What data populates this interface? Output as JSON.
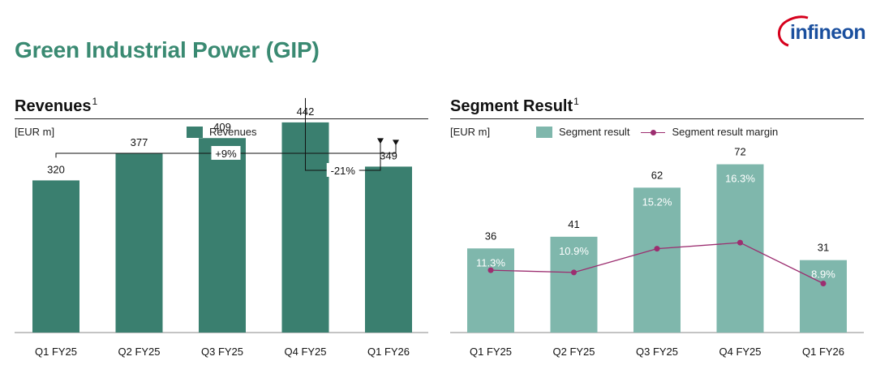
{
  "page": {
    "title": "Green Industrial Power (GIP)",
    "logo_text": "infineon",
    "colors": {
      "title": "#3a8a72",
      "revenue_bar": "#3a7f6f",
      "segment_bar": "#7fb7ac",
      "margin_line": "#9c2e70",
      "logo": "#1a4f9e",
      "logo_swoosh": "#d6001c"
    }
  },
  "chart_data": [
    {
      "type": "bar",
      "title": "Revenues",
      "title_footnote": "1",
      "unit_label": "[EUR m]",
      "categories": [
        "Q1 FY25",
        "Q2 FY25",
        "Q3 FY25",
        "Q4 FY25",
        "Q1 FY26"
      ],
      "series": [
        {
          "name": "Revenues",
          "values": [
            320,
            377,
            409,
            442,
            349
          ]
        }
      ],
      "ylim": [
        0,
        580
      ],
      "legend_position": "top-center",
      "annotations": [
        {
          "label": "+9%",
          "from": "Q1 FY25",
          "to": "Q1 FY26"
        },
        {
          "label": "-21%",
          "from": "Q4 FY25",
          "to": "Q1 FY26"
        }
      ]
    },
    {
      "type": "bar",
      "title": "Segment Result",
      "title_footnote": "1",
      "unit_label": "[EUR m]",
      "categories": [
        "Q1 FY25",
        "Q2 FY25",
        "Q3 FY25",
        "Q4 FY25",
        "Q1 FY26"
      ],
      "series": [
        {
          "name": "Segment result",
          "type": "bar",
          "values": [
            36,
            41,
            62,
            72,
            31
          ]
        },
        {
          "name": "Segment result margin",
          "type": "line",
          "values": [
            11.3,
            10.9,
            15.2,
            16.3,
            8.9
          ],
          "labels": [
            "11.3%",
            "10.9%",
            "15.2%",
            "16.3%",
            "8.9%"
          ]
        }
      ],
      "ylim": [
        0,
        118
      ],
      "margin_ylim": [
        0,
        50
      ],
      "legend_position": "top-center"
    }
  ]
}
